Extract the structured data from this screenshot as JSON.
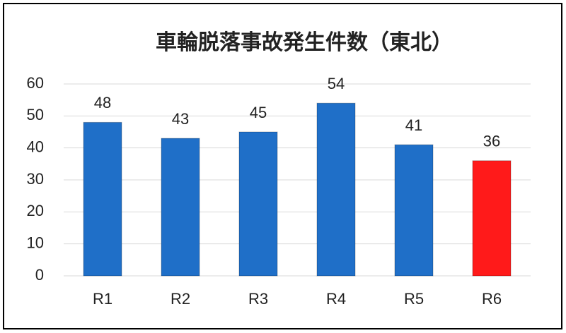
{
  "chart_data": {
    "type": "bar",
    "title": "車輪脱落事故発生件数（東北）",
    "categories": [
      "R1",
      "R2",
      "R3",
      "R4",
      "R5",
      "R6"
    ],
    "values": [
      48,
      43,
      45,
      54,
      41,
      36
    ],
    "colors": [
      "#1f6fc8",
      "#1f6fc8",
      "#1f6fc8",
      "#1f6fc8",
      "#1f6fc8",
      "#ff1a1a"
    ],
    "ylim": [
      0,
      60
    ],
    "yticks": [
      0,
      10,
      20,
      30,
      40,
      50,
      60
    ],
    "grid": true
  }
}
